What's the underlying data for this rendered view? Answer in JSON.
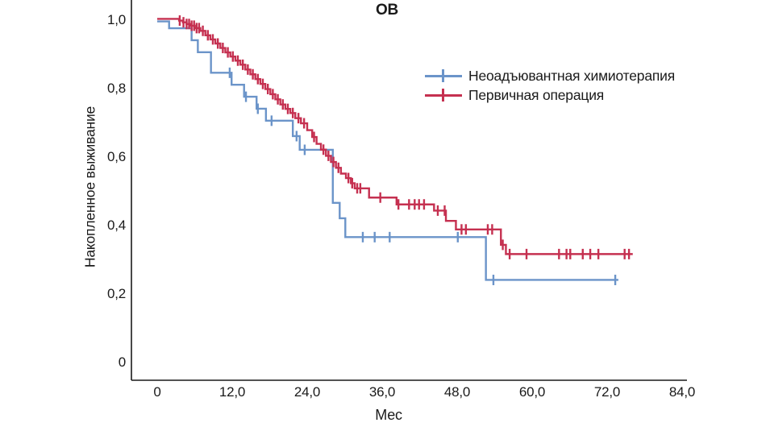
{
  "chart_data": {
    "type": "line",
    "subtype": "kaplan-meier-step-survival",
    "title": "ОВ",
    "xlabel": "Мес",
    "ylabel": "Накопленное выживание",
    "x_ticks": [
      "0",
      "12,0",
      "24,0",
      "36,0",
      "48,0",
      "60,0",
      "72,0",
      "84,0"
    ],
    "x_tick_values": [
      0,
      12,
      24,
      36,
      48,
      60,
      72,
      84
    ],
    "y_ticks": [
      "1,0",
      "0,8",
      "0,6",
      "0,4",
      "0,2",
      "0"
    ],
    "y_tick_values": [
      1.0,
      0.8,
      0.6,
      0.4,
      0.2,
      0
    ],
    "xlim": [
      0,
      84
    ],
    "ylim": [
      0,
      1.0
    ],
    "grid": false,
    "legend_position": "upper-right-inside",
    "axis_color": "#1a1a1a",
    "series": [
      {
        "name": "Неоадъювантная химиотерапия",
        "color": "#6b94c9",
        "steps": [
          [
            0,
            1.0
          ],
          [
            1.9,
            0.98
          ],
          [
            5.5,
            0.945
          ],
          [
            6.5,
            0.91
          ],
          [
            8.6,
            0.85
          ],
          [
            11.9,
            0.815
          ],
          [
            13.9,
            0.78
          ],
          [
            15.9,
            0.745
          ],
          [
            17.4,
            0.71
          ],
          [
            21.7,
            0.665
          ],
          [
            22.8,
            0.625
          ],
          [
            28.1,
            0.47
          ],
          [
            29.2,
            0.425
          ],
          [
            30.1,
            0.37
          ],
          [
            52.6,
            0.245
          ]
        ],
        "censors": [
          11.6,
          14.2,
          16.1,
          18.3,
          22.3,
          23.6,
          32.9,
          34.8,
          37.2,
          48.1,
          53.8,
          73.3
        ],
        "end_time": 73.8
      },
      {
        "name": "Первичная операция",
        "color": "#c53050",
        "steps": [
          [
            0,
            1.0
          ],
          [
            3.5,
            0.995
          ],
          [
            4.1,
            0.99
          ],
          [
            4.7,
            0.985
          ],
          [
            5.3,
            0.98
          ],
          [
            6.0,
            0.973
          ],
          [
            6.9,
            0.965
          ],
          [
            7.7,
            0.952
          ],
          [
            8.5,
            0.94
          ],
          [
            9.3,
            0.928
          ],
          [
            10.1,
            0.915
          ],
          [
            10.9,
            0.902
          ],
          [
            11.7,
            0.89
          ],
          [
            12.5,
            0.878
          ],
          [
            13.3,
            0.866
          ],
          [
            14.1,
            0.852
          ],
          [
            14.9,
            0.838
          ],
          [
            15.7,
            0.824
          ],
          [
            16.5,
            0.81
          ],
          [
            17.3,
            0.795
          ],
          [
            18.1,
            0.78
          ],
          [
            18.9,
            0.765
          ],
          [
            19.7,
            0.75
          ],
          [
            20.5,
            0.737
          ],
          [
            21.3,
            0.725
          ],
          [
            22.1,
            0.71
          ],
          [
            23.0,
            0.695
          ],
          [
            24.0,
            0.675
          ],
          [
            24.8,
            0.655
          ],
          [
            25.5,
            0.635
          ],
          [
            26.2,
            0.618
          ],
          [
            27.0,
            0.6
          ],
          [
            27.8,
            0.582
          ],
          [
            28.6,
            0.565
          ],
          [
            29.4,
            0.548
          ],
          [
            30.2,
            0.535
          ],
          [
            31.0,
            0.52
          ],
          [
            31.6,
            0.505
          ],
          [
            33.9,
            0.478
          ],
          [
            38.3,
            0.458
          ],
          [
            44.3,
            0.44
          ],
          [
            46.2,
            0.41
          ],
          [
            47.8,
            0.385
          ],
          [
            55.0,
            0.34
          ],
          [
            55.8,
            0.313
          ]
        ],
        "censors": [
          3.6,
          4.2,
          4.7,
          5.1,
          5.5,
          5.9,
          6.3,
          6.7,
          7.3,
          8.1,
          8.9,
          9.7,
          10.5,
          11.3,
          12.1,
          12.9,
          13.7,
          14.5,
          15.3,
          16.1,
          16.9,
          17.7,
          18.5,
          19.3,
          20.1,
          20.9,
          21.7,
          22.6,
          23.5,
          25.1,
          26.6,
          27.4,
          28.2,
          29.0,
          30.6,
          31.2,
          32.0,
          32.5,
          35.7,
          38.6,
          40.3,
          41.2,
          41.9,
          42.7,
          44.9,
          46.0,
          48.7,
          49.4,
          52.9,
          53.6,
          55.3,
          56.4,
          59.1,
          64.3,
          65.5,
          66.1,
          68.1,
          69.3,
          70.6,
          74.8,
          75.5
        ],
        "end_time": 76.1
      }
    ]
  }
}
